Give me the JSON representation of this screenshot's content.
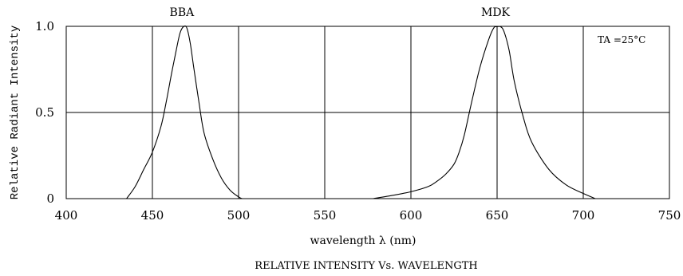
{
  "chart_data": {
    "type": "line",
    "title": "RELATIVE INTENSITY Vs. WAVELENGTH",
    "xlabel": "wavelength  λ (nm)",
    "ylabel": "Relative Radiant Intensity",
    "xlim": [
      400,
      750
    ],
    "ylim": [
      0,
      1.0
    ],
    "xticks": [
      400,
      450,
      500,
      550,
      600,
      650,
      700,
      750
    ],
    "yticks": [
      0,
      0.5,
      1.0
    ],
    "xtick_labels": [
      "400",
      "450",
      "500",
      "550",
      "600",
      "650",
      "700",
      "750"
    ],
    "ytick_labels": [
      "0",
      "0.5",
      "1.0"
    ],
    "grid": true,
    "annotation": {
      "main": "TA",
      "rest": "=25°C",
      "placement": "top-right"
    },
    "series": [
      {
        "name": "BBA",
        "x": [
          435,
          440,
          445,
          450,
          455,
          458,
          461,
          464,
          466,
          468,
          470,
          472,
          474,
          477,
          480,
          485,
          490,
          495,
          500,
          502
        ],
        "y": [
          0,
          0.07,
          0.17,
          0.27,
          0.42,
          0.56,
          0.72,
          0.87,
          0.96,
          1.0,
          0.99,
          0.9,
          0.76,
          0.56,
          0.38,
          0.23,
          0.12,
          0.05,
          0.01,
          0
        ]
      },
      {
        "name": "MDK",
        "x": [
          578,
          590,
          600,
          610,
          615,
          620,
          625,
          628,
          631,
          635,
          640,
          645,
          648,
          650,
          652,
          654,
          657,
          660,
          665,
          670,
          680,
          690,
          700,
          707
        ],
        "y": [
          0,
          0.02,
          0.04,
          0.07,
          0.1,
          0.14,
          0.2,
          0.27,
          0.37,
          0.55,
          0.76,
          0.92,
          0.99,
          1.0,
          1.0,
          0.97,
          0.86,
          0.68,
          0.48,
          0.33,
          0.17,
          0.08,
          0.03,
          0
        ]
      }
    ]
  }
}
